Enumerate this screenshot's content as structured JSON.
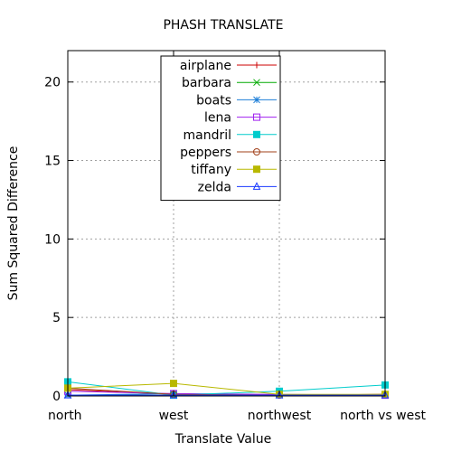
{
  "chart_data": {
    "type": "line",
    "title": "PHASH TRANSLATE",
    "xlabel": "Translate Value",
    "ylabel": "Sum Squared Difference",
    "categories": [
      "north",
      "west",
      "northwest",
      "north vs west"
    ],
    "ylim": [
      0,
      22
    ],
    "yticks": [
      0,
      5,
      10,
      15,
      20
    ],
    "grid": true,
    "legend_position": "top-center",
    "series": [
      {
        "name": "airplane",
        "color": "#cc0000",
        "marker": "plus",
        "values": [
          0.4,
          0.1,
          0.05,
          0.1
        ]
      },
      {
        "name": "barbara",
        "color": "#00aa00",
        "marker": "cross",
        "values": [
          0.05,
          0.05,
          0.05,
          0.05
        ]
      },
      {
        "name": "boats",
        "color": "#1e7fd8",
        "marker": "star",
        "values": [
          0.05,
          0.15,
          0.05,
          0.05
        ]
      },
      {
        "name": "lena",
        "color": "#a020f0",
        "marker": "square-open",
        "values": [
          0.3,
          0.15,
          0.1,
          0.05
        ]
      },
      {
        "name": "mandril",
        "color": "#00cccc",
        "marker": "square-filled",
        "values": [
          0.9,
          0.05,
          0.3,
          0.7
        ]
      },
      {
        "name": "peppers",
        "color": "#a0401a",
        "marker": "circle-open",
        "values": [
          0.5,
          0.1,
          0.05,
          0.1
        ]
      },
      {
        "name": "tiffany",
        "color": "#b8b800",
        "marker": "square-filled",
        "values": [
          0.5,
          0.8,
          0.1,
          0.1
        ]
      },
      {
        "name": "zelda",
        "color": "#1a3aff",
        "marker": "triangle-open",
        "values": [
          0.05,
          0.05,
          0.05,
          0.05
        ]
      }
    ]
  }
}
